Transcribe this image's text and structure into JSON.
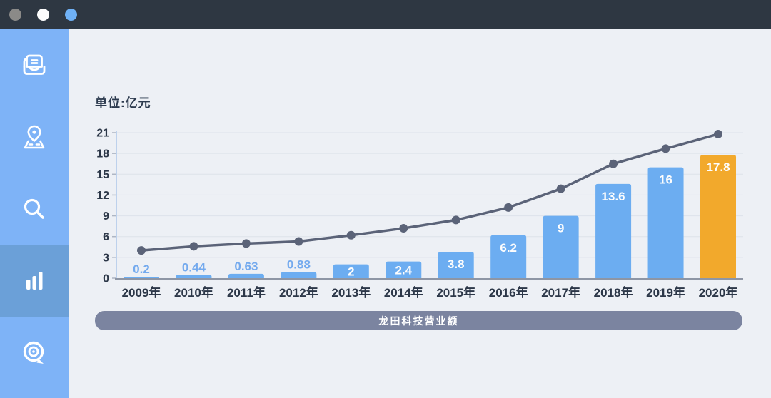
{
  "window": {
    "titlebar": {
      "dots": [
        {
          "name": "dot-gray",
          "color": "#8b8a88"
        },
        {
          "name": "dot-white",
          "color": "#fcfcfd"
        },
        {
          "name": "dot-blue",
          "color": "#6fb1f6"
        }
      ]
    }
  },
  "sidebar": {
    "items": [
      {
        "id": "reader",
        "icon": "book-reader-icon",
        "active": false
      },
      {
        "id": "map",
        "icon": "map-pin-icon",
        "active": false
      },
      {
        "id": "search",
        "icon": "search-icon",
        "active": false
      },
      {
        "id": "stats",
        "icon": "bar-chart-icon",
        "active": true
      },
      {
        "id": "feedback",
        "icon": "target-comment-icon",
        "active": false
      }
    ]
  },
  "chart_data": {
    "type": "bar",
    "title": "龙田科技营业额",
    "unit_label": "单位:亿元",
    "categories": [
      "2009年",
      "2010年",
      "2011年",
      "2012年",
      "2013年",
      "2014年",
      "2015年",
      "2016年",
      "2017年",
      "2018年",
      "2019年",
      "2020年"
    ],
    "series": [
      {
        "name": "bar-series",
        "type": "bar",
        "values": [
          0.2,
          0.44,
          0.63,
          0.88,
          2,
          2.4,
          3.8,
          6.2,
          9,
          13.6,
          16,
          17.8
        ],
        "labels": [
          "0.2",
          "0.44",
          "0.63",
          "0.88",
          "2",
          "2.4",
          "3.8",
          "6.2",
          "9",
          "13.6",
          "16",
          "17.8"
        ],
        "highlight_category": "2020年"
      },
      {
        "name": "line-series",
        "type": "line",
        "values": [
          4.0,
          4.6,
          5.0,
          5.3,
          6.2,
          7.2,
          8.4,
          10.2,
          12.9,
          16.5,
          18.7,
          20.8
        ],
        "note": "values estimated from pixel positions; no labels shown on screen"
      }
    ],
    "xlabel": "",
    "ylabel": "",
    "ylim": [
      0,
      21
    ],
    "yticks": [
      0,
      3,
      6,
      9,
      12,
      15,
      18,
      21
    ],
    "grid": true,
    "legend": false,
    "colors": {
      "bar_blue": "#6cadf1",
      "bar_highlight_orange": "#f2a92c",
      "line": "#5b6378",
      "grid": "#dde2ea",
      "tick": "#aeb6c4",
      "x_axis": "#8e96a5",
      "y_axis": "#bdd1ec",
      "text_dark": "#2c3748",
      "value_label_inside": "#fdfdfd",
      "value_label_above": "#74aaee",
      "banner_bg": "#7b84a0",
      "sidebar": "#7eb3f7",
      "sidebar_active": "#6ba0d8",
      "titlebar": "#2e3742",
      "content_bg": "#edf0f5"
    }
  }
}
